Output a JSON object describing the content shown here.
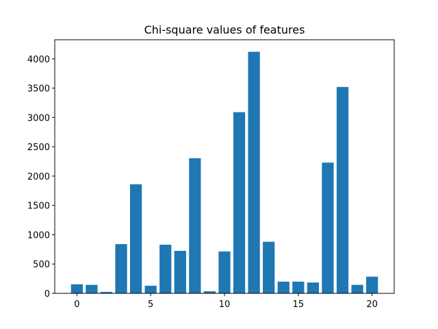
{
  "chart_data": {
    "type": "bar",
    "title": "Chi-square values of features",
    "xlabel": "",
    "ylabel": "",
    "x": [
      0,
      1,
      2,
      3,
      4,
      5,
      6,
      7,
      8,
      9,
      10,
      11,
      12,
      13,
      14,
      15,
      16,
      17,
      18,
      19,
      20
    ],
    "values": [
      155,
      145,
      25,
      840,
      1860,
      130,
      830,
      725,
      2305,
      35,
      715,
      3090,
      4120,
      880,
      200,
      200,
      185,
      2230,
      3520,
      145,
      285
    ],
    "xlim": [
      -1.5,
      21.5
    ],
    "ylim": [
      0,
      4325
    ],
    "xticks": [
      0,
      5,
      10,
      15,
      20
    ],
    "yticks": [
      0,
      500,
      1000,
      1500,
      2000,
      2500,
      3000,
      3500,
      4000
    ],
    "grid": false,
    "bar_color": "#1f77b4"
  }
}
